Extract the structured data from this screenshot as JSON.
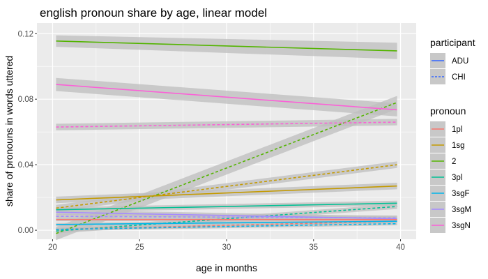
{
  "chart_data": {
    "type": "line",
    "title": "english pronoun share  by age, linear model",
    "xlabel": "age in months",
    "ylabel": "share of pronouns in words uttered",
    "xlim": [
      19.1,
      40.9
    ],
    "ylim": [
      -0.0055,
      0.1265
    ],
    "xticks": [
      20,
      25,
      30,
      35,
      40
    ],
    "xtick_labels": [
      "20",
      "25",
      "30",
      "35",
      "40"
    ],
    "yticks": [
      0.0,
      0.04,
      0.08,
      0.12
    ],
    "ytick_labels": [
      "0.00",
      "0.04",
      "0.08",
      "0.12"
    ],
    "grid": true,
    "panel_background": "#ebebeb",
    "ribbon_color": "#bebebe",
    "legend_position": "right",
    "legends": [
      {
        "title": "participant",
        "kind": "linetype",
        "entries": [
          {
            "label": "ADU",
            "linetype": "solid",
            "color": "#3366ff"
          },
          {
            "label": "CHI",
            "linetype": "dashed",
            "color": "#3366ff"
          }
        ]
      },
      {
        "title": "pronoun",
        "kind": "color",
        "entries": [
          {
            "label": "1pl",
            "color": "#F8766D"
          },
          {
            "label": "1sg",
            "color": "#C49A00"
          },
          {
            "label": "2",
            "color": "#53B400"
          },
          {
            "label": "3pl",
            "color": "#00C094"
          },
          {
            "label": "3sgF",
            "color": "#00B6EB"
          },
          {
            "label": "3sgM",
            "color": "#A58AFF"
          },
          {
            "label": "3sgN",
            "color": "#FB61D7"
          }
        ]
      }
    ],
    "series": [
      {
        "pronoun": "2",
        "participant": "ADU",
        "x": [
          20.2,
          39.8
        ],
        "y": [
          0.1155,
          0.1095
        ],
        "ci": [
          0.0035,
          0.005
        ],
        "color": "#53B400",
        "linetype": "solid"
      },
      {
        "pronoun": "2",
        "participant": "CHI",
        "x": [
          20.2,
          39.8
        ],
        "y": [
          -0.002,
          0.078
        ],
        "ci": [
          0.004,
          0.004
        ],
        "color": "#53B400",
        "linetype": "dashed"
      },
      {
        "pronoun": "3sgN",
        "participant": "ADU",
        "x": [
          20.2,
          39.8
        ],
        "y": [
          0.089,
          0.0735
        ],
        "ci": [
          0.004,
          0.004
        ],
        "color": "#FB61D7",
        "linetype": "solid"
      },
      {
        "pronoun": "3sgN",
        "participant": "CHI",
        "x": [
          20.2,
          39.8
        ],
        "y": [
          0.063,
          0.066
        ],
        "ci": [
          0.002,
          0.002
        ],
        "color": "#FB61D7",
        "linetype": "dashed"
      },
      {
        "pronoun": "1sg",
        "participant": "ADU",
        "x": [
          20.2,
          39.8
        ],
        "y": [
          0.0185,
          0.027
        ],
        "ci": [
          0.002,
          0.002
        ],
        "color": "#C49A00",
        "linetype": "solid"
      },
      {
        "pronoun": "1sg",
        "participant": "CHI",
        "x": [
          20.2,
          39.8
        ],
        "y": [
          0.0135,
          0.04
        ],
        "ci": [
          0.002,
          0.002
        ],
        "color": "#C49A00",
        "linetype": "dashed"
      },
      {
        "pronoun": "3pl",
        "participant": "ADU",
        "x": [
          20.2,
          39.8
        ],
        "y": [
          0.0125,
          0.0165
        ],
        "ci": [
          0.0015,
          0.0015
        ],
        "color": "#00C094",
        "linetype": "solid"
      },
      {
        "pronoun": "3pl",
        "participant": "CHI",
        "x": [
          20.2,
          39.8
        ],
        "y": [
          -0.0005,
          0.0145
        ],
        "ci": [
          0.0015,
          0.0015
        ],
        "color": "#00C094",
        "linetype": "dashed"
      },
      {
        "pronoun": "3sgM",
        "participant": "ADU",
        "x": [
          20.2,
          39.8
        ],
        "y": [
          0.011,
          0.007
        ],
        "ci": [
          0.0015,
          0.0015
        ],
        "color": "#A58AFF",
        "linetype": "solid"
      },
      {
        "pronoun": "3sgM",
        "participant": "CHI",
        "x": [
          20.2,
          39.8
        ],
        "y": [
          0.0085,
          0.0075
        ],
        "ci": [
          0.0015,
          0.0015
        ],
        "color": "#A58AFF",
        "linetype": "dashed"
      },
      {
        "pronoun": "1pl",
        "participant": "ADU",
        "x": [
          20.2,
          39.8
        ],
        "y": [
          0.0065,
          0.0065
        ],
        "ci": [
          0.001,
          0.001
        ],
        "color": "#F8766D",
        "linetype": "solid"
      },
      {
        "pronoun": "1pl",
        "participant": "CHI",
        "x": [
          20.2,
          39.8
        ],
        "y": [
          0.0005,
          0.0055
        ],
        "ci": [
          0.001,
          0.001
        ],
        "color": "#F8766D",
        "linetype": "dashed"
      },
      {
        "pronoun": "3sgF",
        "participant": "ADU",
        "x": [
          20.2,
          39.8
        ],
        "y": [
          0.0035,
          0.0055
        ],
        "ci": [
          0.001,
          0.001
        ],
        "color": "#00B6EB",
        "linetype": "solid"
      },
      {
        "pronoun": "3sgF",
        "participant": "CHI",
        "x": [
          20.2,
          39.8
        ],
        "y": [
          0.0005,
          0.004
        ],
        "ci": [
          0.001,
          0.001
        ],
        "color": "#00B6EB",
        "linetype": "dashed"
      }
    ]
  }
}
